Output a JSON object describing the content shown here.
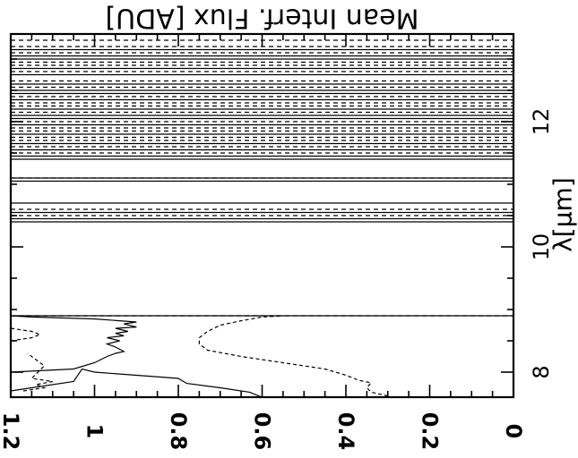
{
  "chart_data": {
    "type": "line",
    "title": "",
    "xlabel": "Mean Interf. Flux [ADU]",
    "ylabel": "λ[μm]",
    "rotation": "plot displayed rotated 90° counter-clockwise; wavelength axis runs vertically (8 at bottom, 12 near top), flux axis runs horizontally (0 at right, 1.2 at left); axis title rendered upside-down at top",
    "xlim": [
      0,
      1.2
    ],
    "ylim": [
      7.6,
      13.4
    ],
    "x_ticks": [
      {
        "value": 0,
        "label": "0"
      },
      {
        "value": 0.2,
        "label": "0.2"
      },
      {
        "value": 0.4,
        "label": "0.4"
      },
      {
        "value": 0.6,
        "label": "0.6"
      },
      {
        "value": 0.8,
        "label": "0.8"
      },
      {
        "value": 1.0,
        "label": "1"
      },
      {
        "value": 1.2,
        "label": "1.2"
      }
    ],
    "y_ticks": [
      {
        "value": 8,
        "label": "8"
      },
      {
        "value": 10,
        "label": "10"
      },
      {
        "value": 12,
        "label": "12"
      }
    ],
    "y_minor_step": 0.5,
    "x_minor_step": 0.05,
    "grid": false,
    "legend": "none",
    "series": [
      {
        "style": "solid",
        "x": [
          0.6,
          0.63,
          0.7,
          0.78,
          0.8,
          0.9,
          1.0,
          1.03,
          1.05,
          1.2
        ],
        "y": [
          7.6,
          7.68,
          7.75,
          7.82,
          7.9,
          7.95,
          8.0,
          8.05,
          7.85,
          7.7
        ]
      },
      {
        "style": "solid",
        "x": [
          1.2,
          1.05,
          1.0,
          0.97,
          0.95,
          0.93,
          0.95,
          0.97,
          0.94,
          0.97,
          0.93,
          0.95,
          0.92,
          0.95,
          0.9,
          0.93,
          0.9,
          1.0,
          1.15,
          1.2
        ],
        "y": [
          8.0,
          8.05,
          8.15,
          8.25,
          8.3,
          8.33,
          8.4,
          8.45,
          8.5,
          8.55,
          8.58,
          8.62,
          8.65,
          8.7,
          8.72,
          8.77,
          8.8,
          8.85,
          8.88,
          8.9
        ]
      },
      {
        "style": "dashed",
        "x": [
          0.3,
          0.34,
          0.35,
          0.34,
          0.37,
          0.38,
          0.4,
          0.45,
          0.55,
          0.65,
          0.73,
          0.75,
          0.75,
          0.73,
          0.7,
          0.65,
          0.6,
          0.55
        ],
        "y": [
          7.62,
          7.68,
          7.75,
          7.83,
          7.87,
          7.9,
          7.95,
          8.05,
          8.15,
          8.25,
          8.35,
          8.45,
          8.55,
          8.65,
          8.75,
          8.82,
          8.88,
          8.9
        ]
      },
      {
        "style": "dashed",
        "x": [
          1.17,
          1.12,
          1.14,
          1.1,
          1.15,
          1.12,
          1.16
        ],
        "y": [
          7.7,
          7.75,
          7.8,
          7.85,
          7.9,
          8.1,
          8.3
        ]
      },
      {
        "style": "dashed",
        "x": [
          1.2,
          1.15,
          1.13,
          1.15,
          1.2
        ],
        "y": [
          8.5,
          8.55,
          8.6,
          8.65,
          8.7
        ]
      }
    ],
    "spikes_solid": [
      8.9,
      10.4,
      10.45,
      10.55,
      10.7,
      11.05,
      11.1,
      11.4,
      11.45,
      11.55,
      11.65,
      11.8,
      11.95,
      12.05,
      12.1,
      12.2,
      12.35,
      12.45,
      12.5,
      12.6,
      12.75,
      12.85,
      13.0,
      13.05,
      13.15
    ],
    "spikes_dashed": [
      8.9,
      10.5,
      10.6,
      11.1,
      11.5,
      11.6,
      11.7,
      11.75,
      11.85,
      11.9,
      12.0,
      12.15,
      12.25,
      12.3,
      12.4,
      12.55,
      12.65,
      12.8,
      12.9,
      12.95,
      13.1,
      13.2,
      13.3
    ]
  }
}
